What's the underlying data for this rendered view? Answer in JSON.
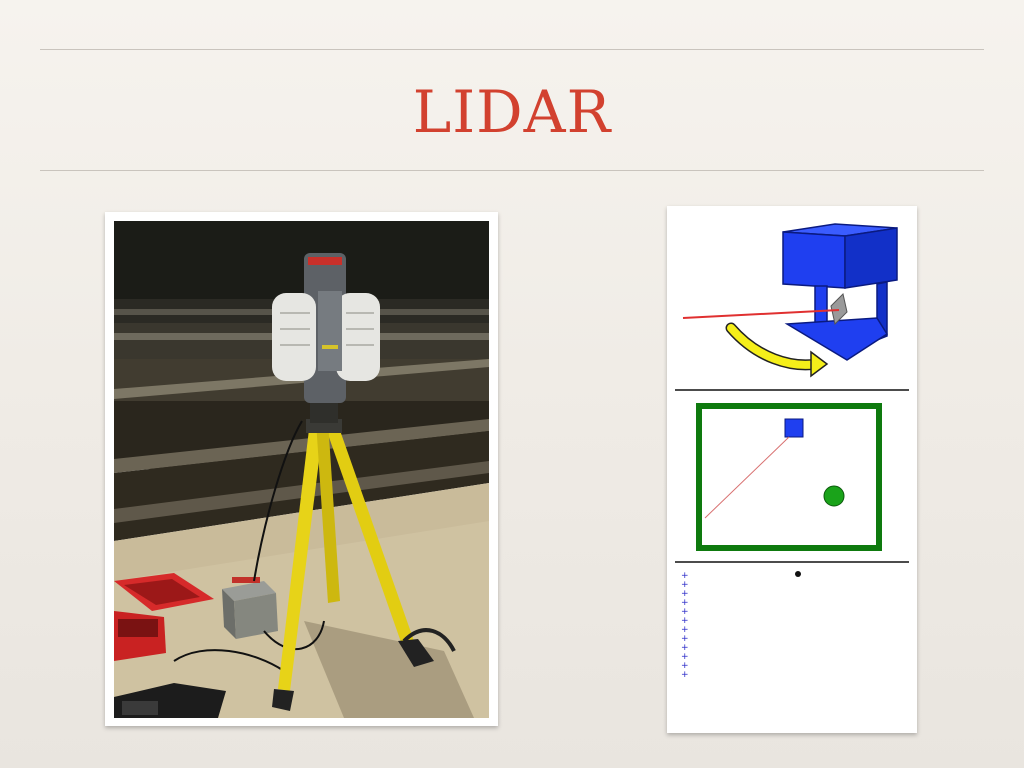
{
  "slide": {
    "title": "LIDAR"
  },
  "colors": {
    "title": "#d2412f",
    "rule": "#c9c4bd",
    "scanner_body": "#1f3ff0",
    "room_wall": "#0e7a0e",
    "target": "#1aa31a",
    "laser": "#e03030",
    "sweep_arrow": "#f5ef1a",
    "point_marks": "#2a2ac8"
  },
  "photo": {
    "description_name": "lidar-scanner-on-tripod-photo"
  },
  "diagram": {
    "panels": [
      "scanner-3d-illustration",
      "room-top-view",
      "scan-profile"
    ]
  }
}
